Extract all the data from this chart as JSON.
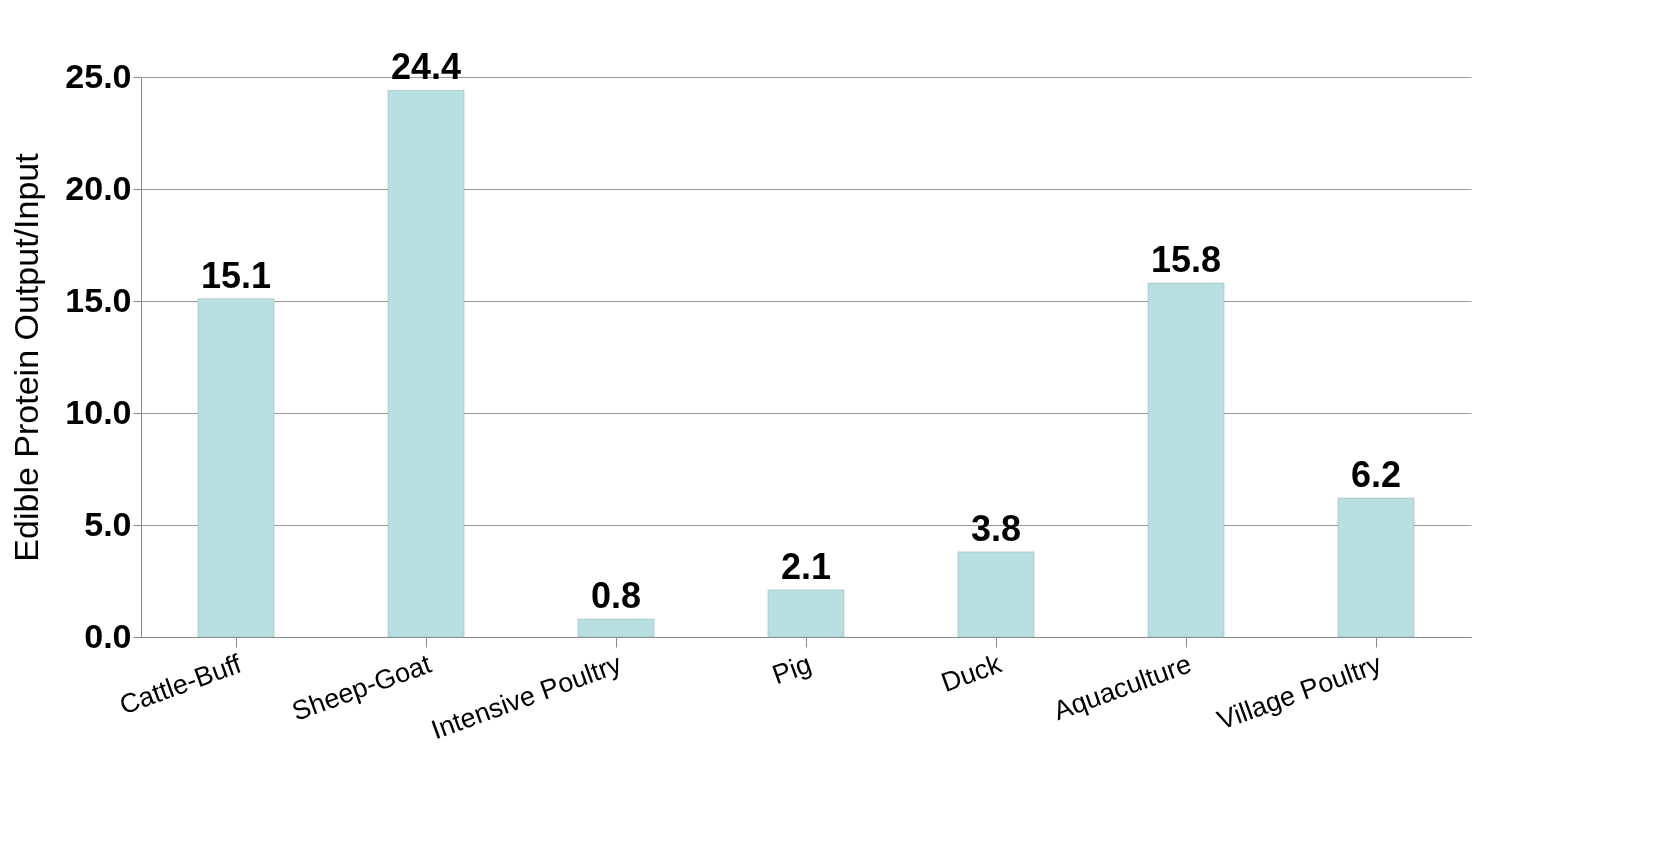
{
  "chart_data": {
    "type": "bar",
    "ylabel": "Edible Protein Output/Input",
    "categories": [
      "Cattle-Buff",
      "Sheep-Goat",
      "Intensive Poultry",
      "Pig",
      "Duck",
      "Aquaculture",
      "Village Poultry"
    ],
    "values": [
      15.1,
      24.4,
      0.8,
      2.1,
      3.8,
      15.8,
      6.2
    ],
    "color": "#b9e0e1",
    "ylim": [
      0,
      25
    ],
    "yticks": [
      {
        "value": 0,
        "label": "0.0"
      },
      {
        "value": 5,
        "label": "5.0"
      },
      {
        "value": 10,
        "label": "10.0"
      },
      {
        "value": 15,
        "label": "15.0"
      },
      {
        "value": 20,
        "label": "20.0"
      },
      {
        "value": 25,
        "label": "25.0"
      }
    ],
    "grid": "y",
    "data_labels": true
  }
}
